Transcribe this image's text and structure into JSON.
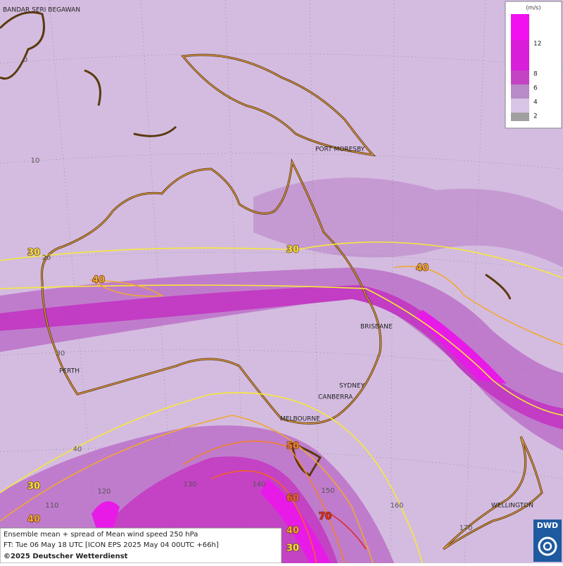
{
  "map": {
    "cities": [
      "BANDAR SERI BEGAWAN",
      "PORT MORESBY",
      "BRISBANE",
      "SYDNEY",
      "CANBERRA",
      "MELBOURNE",
      "PERTH",
      "WELLINGTON"
    ],
    "lat_labels": [
      0,
      10,
      20,
      30,
      40
    ],
    "lon_labels": [
      110,
      120,
      130,
      140,
      150,
      160,
      170
    ],
    "contour_labels": [
      {
        "text": "30",
        "color": "#f5e83a"
      },
      {
        "text": "30",
        "color": "#f5e83a"
      },
      {
        "text": "40",
        "color": "#f0a830"
      },
      {
        "text": "40",
        "color": "#f0a830"
      },
      {
        "text": "50",
        "color": "#f08030"
      },
      {
        "text": "60",
        "color": "#f06030"
      },
      {
        "text": "70",
        "color": "#e02828"
      },
      {
        "text": "40",
        "color": "#f0a830"
      },
      {
        "text": "30",
        "color": "#f5e83a"
      },
      {
        "text": "30",
        "color": "#f5e83a"
      },
      {
        "text": "40",
        "color": "#f0a830"
      }
    ],
    "legend": {
      "unit": "(m/s)",
      "levels": [
        {
          "label": "12",
          "color": "#d81ed8"
        },
        {
          "label": "8",
          "color": "#c442c4"
        },
        {
          "label": "6",
          "color": "#b88ac8"
        },
        {
          "label": "4",
          "color": "#d8c4e4"
        },
        {
          "label": "2",
          "color": "#a0a0a0"
        }
      ],
      "top_color": "#f010f0"
    },
    "footer": {
      "line1": "Ensemble mean + spread of Mean wind speed 250 hPa",
      "line2": "FT: Tue 06 May 18 UTC [ICON EPS 2025 May 04 00UTC +66h]",
      "line3": "©2025 Deutscher Wetterdienst"
    },
    "logo": "DWD"
  }
}
